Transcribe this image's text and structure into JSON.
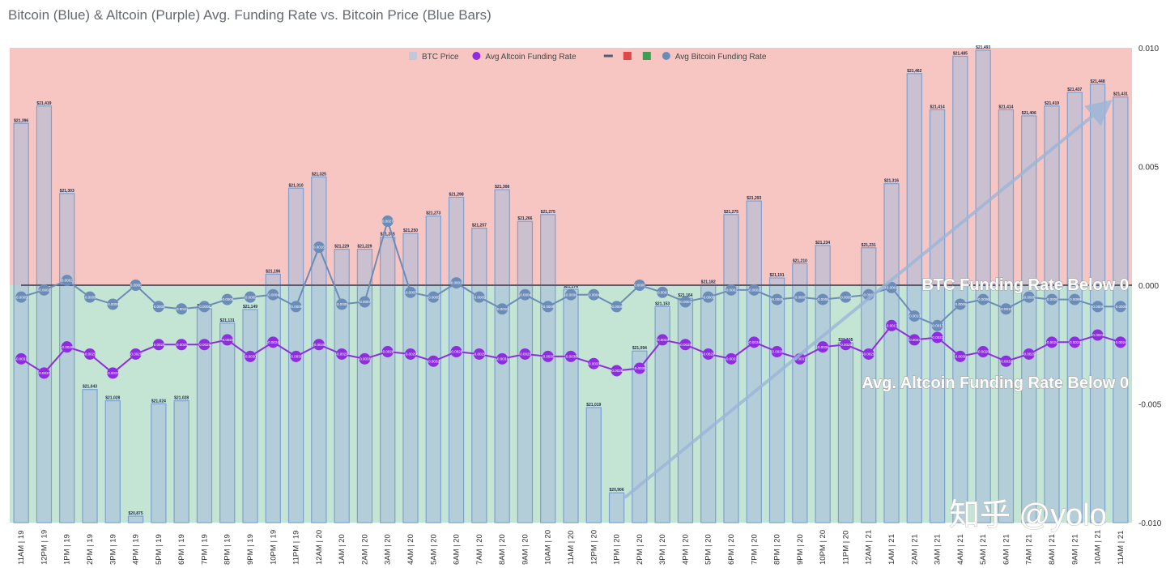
{
  "title": "Bitcoin (Blue) & Altcoin (Purple) Avg. Funding Rate vs. Bitcoin Price (Blue Bars)",
  "watermark": "知乎 @yolo",
  "colors": {
    "upper_zone": "#f7c6c2",
    "lower_zone": "#c4e4d4",
    "bar_fill": "rgba(168,188,220,0.55)",
    "bar_stroke": "#7ea0d2",
    "btc_line": "#6c8cb8",
    "alt_line": "#8e2de0",
    "zero_line": "#555e6a"
  },
  "chart_data": {
    "type": "bar",
    "title": "Bitcoin (Blue) & Altcoin (Purple) Avg. Funding Rate vs. Bitcoin Price (Blue Bars)",
    "categories": [
      "11AM | 19",
      "12PM | 19",
      "1PM | 19",
      "2PM | 19",
      "3PM | 19",
      "4PM | 19",
      "5PM | 19",
      "6PM | 19",
      "7PM | 19",
      "8PM | 19",
      "9PM | 19",
      "10PM | 19",
      "11PM | 19",
      "12AM | 20",
      "1AM | 20",
      "2AM | 20",
      "3AM | 20",
      "4AM | 20",
      "5AM | 20",
      "6AM | 20",
      "7AM | 20",
      "8AM | 20",
      "9AM | 20",
      "10AM | 20",
      "11AM | 20",
      "12PM | 20",
      "1PM | 20",
      "2PM | 20",
      "3PM | 20",
      "4PM | 20",
      "5PM | 20",
      "6PM | 20",
      "7PM | 20",
      "8PM | 20",
      "9PM | 20",
      "10PM | 20",
      "11PM | 20",
      "12AM | 21",
      "1AM | 21",
      "2AM | 21",
      "3AM | 21",
      "4AM | 21",
      "5AM | 21",
      "6AM | 21",
      "7AM | 21",
      "8AM | 21",
      "9AM | 21",
      "10AM | 21",
      "11AM | 21"
    ],
    "price_labels": [
      "$21,396",
      "$21,419",
      "$21,303",
      "$21,043",
      "$21,028",
      "$20,875",
      "$21,024",
      "$21,028",
      "$21,150",
      "$21,131",
      "$21,149",
      "$21,196",
      "$21,310",
      "$21,325",
      "$21,229",
      "$21,229",
      "$21,245",
      "$21,250",
      "$21,273",
      "$21,298",
      "$21,257",
      "$21,308",
      "$21,266",
      "$21,275",
      "$21,176",
      "$21,019",
      "$20,906",
      "$21,094",
      "$21,153",
      "$21,164",
      "$21,182",
      "$21,275",
      "$21,293",
      "$21,191",
      "$21,210",
      "$21,234",
      "$21,105",
      "$21,231",
      "$21,316",
      "$21,462",
      "$21,414",
      "$21,485",
      "$21,493",
      "$21,414",
      "$21,406",
      "$21,419",
      "$21,437",
      "$21,448",
      "$21,431"
    ],
    "series": [
      {
        "name": "BTC Price",
        "axis": "left",
        "type": "bar",
        "values": [
          21396,
          21419,
          21303,
          21043,
          21028,
          20875,
          21024,
          21028,
          21150,
          21131,
          21149,
          21196,
          21310,
          21325,
          21229,
          21229,
          21245,
          21250,
          21273,
          21298,
          21257,
          21308,
          21266,
          21275,
          21176,
          21019,
          20906,
          21094,
          21153,
          21164,
          21182,
          21275,
          21293,
          21191,
          21210,
          21234,
          21105,
          21231,
          21316,
          21462,
          21414,
          21485,
          21493,
          21414,
          21406,
          21419,
          21437,
          21448,
          21431
        ]
      },
      {
        "name": "Avg Altcoin Funding Rate",
        "axis": "right",
        "type": "line",
        "values": [
          -0.0031,
          -0.0037,
          -0.0026,
          -0.0029,
          -0.0037,
          -0.0029,
          -0.0025,
          -0.0025,
          -0.0025,
          -0.0023,
          -0.003,
          -0.0024,
          -0.003,
          -0.0025,
          -0.0029,
          -0.0031,
          -0.0028,
          -0.0029,
          -0.0032,
          -0.0028,
          -0.0029,
          -0.0031,
          -0.0029,
          -0.003,
          -0.003,
          -0.0033,
          -0.0036,
          -0.0035,
          -0.0023,
          -0.0025,
          -0.0029,
          -0.0031,
          -0.0024,
          -0.0028,
          -0.0031,
          -0.0026,
          -0.0025,
          -0.0029,
          -0.0017,
          -0.0023,
          -0.0022,
          -0.003,
          -0.0028,
          -0.0032,
          -0.0029,
          -0.0024,
          -0.0024,
          -0.0021,
          -0.0024
        ]
      },
      {
        "name": "Avg Bitcoin Funding Rate",
        "axis": "right",
        "type": "line",
        "values": [
          -0.0005,
          -0.0002,
          0.0002,
          -0.0005,
          -0.0008,
          0.0,
          -0.0009,
          -0.001,
          -0.0009,
          -0.0006,
          -0.0005,
          -0.0004,
          -0.0009,
          0.0016,
          -0.0008,
          -0.0007,
          0.0027,
          -0.0003,
          -0.0005,
          0.0001,
          -0.0005,
          -0.001,
          -0.0004,
          -0.0009,
          -0.0004,
          -0.0004,
          -0.0009,
          0.0,
          -0.0003,
          -0.0007,
          -0.0005,
          -0.0002,
          -0.0002,
          -0.0006,
          -0.0005,
          -0.0006,
          -0.0005,
          -0.0004,
          -0.0001,
          -0.0013,
          -0.0017,
          -0.0008,
          -0.0006,
          -0.001,
          -0.0005,
          -0.0006,
          -0.0006,
          -0.0009,
          -0.0009
        ]
      }
    ],
    "yaxis_right": {
      "range": [
        -0.01,
        0.01
      ],
      "ticks": [
        "0.010",
        "0.005",
        "0.000",
        "-0.005",
        "-0.010"
      ]
    },
    "price_range": [
      20875,
      21493
    ],
    "legend": {
      "position": "top-center",
      "entries": [
        "BTC Price",
        "Avg Altcoin Funding Rate",
        "",
        "",
        "",
        "Avg Bitcoin Funding Rate"
      ]
    },
    "annotations": [
      "BTC Funding Rate Below 0",
      "Avg. Altcoin Funding Rate Below 0"
    ]
  }
}
